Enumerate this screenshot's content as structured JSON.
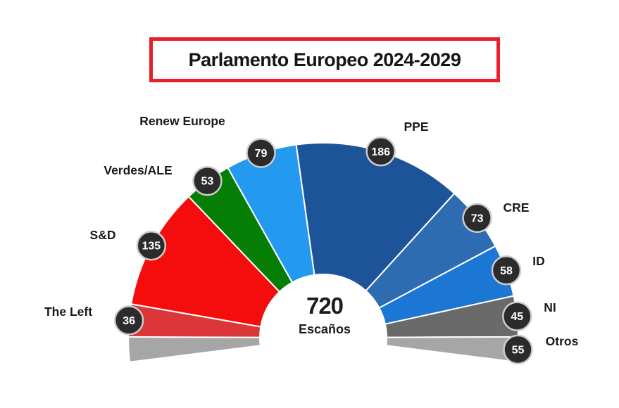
{
  "header": {
    "title": "Parlamento Europeo 2024-2029",
    "border_color": "#e8202e"
  },
  "center": {
    "total": "720",
    "unit": "Escaños"
  },
  "chart_data": {
    "type": "pie",
    "variant": "parliament-hemicycle-semicircle",
    "title": "Parlamento Europeo 2024-2029",
    "total_seats": 720,
    "center_label": "720 Escaños",
    "legend_position": "labels-around-arc",
    "categories": [
      "The Left",
      "S&D",
      "Verdes/ALE",
      "Renew Europe",
      "PPE",
      "CRE",
      "ID",
      "NI",
      "Otros"
    ],
    "values": [
      36,
      135,
      53,
      79,
      186,
      73,
      58,
      45,
      55
    ],
    "parties": [
      {
        "name": "The Left",
        "seats": 36,
        "color": "#db3638"
      },
      {
        "name": "S&D",
        "seats": 135,
        "color": "#f50d0d"
      },
      {
        "name": "Verdes/ALE",
        "seats": 53,
        "color": "#067e06"
      },
      {
        "name": "Renew Europe",
        "seats": 79,
        "color": "#2399ef"
      },
      {
        "name": "PPE",
        "seats": 186,
        "color": "#1d5499"
      },
      {
        "name": "CRE",
        "seats": 73,
        "color": "#2e6cb2"
      },
      {
        "name": "ID",
        "seats": 58,
        "color": "#1b76d4"
      },
      {
        "name": "NI",
        "seats": 45,
        "color": "#6a6a6a"
      },
      {
        "name": "Otros",
        "seats": 55,
        "color": "#a6a6a6"
      }
    ],
    "layout_note": "Otros wedge is drawn split: one half at the far left end of the arc (unlabeled), one half at the far right end (labeled with badge 55)",
    "badge_style": {
      "bg": "#2b2b2b",
      "border": "#cccccc",
      "text": "#ffffff"
    }
  }
}
